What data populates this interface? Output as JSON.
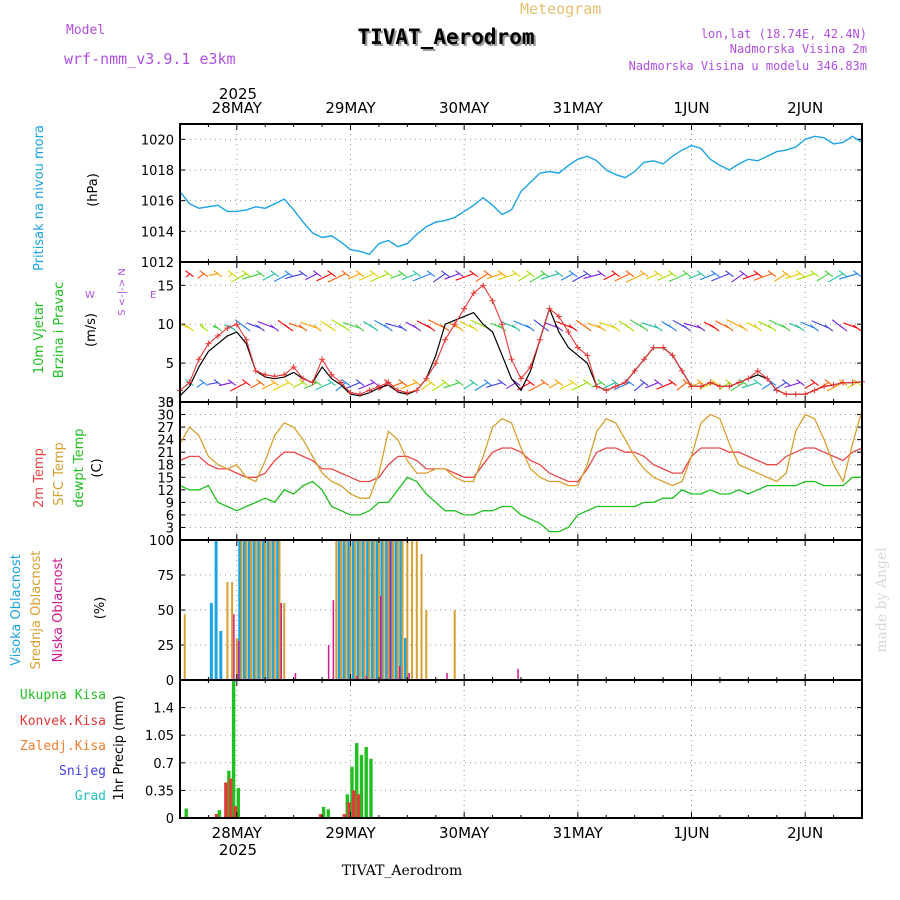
{
  "header": {
    "model_label": "Model",
    "model_name": "wrf-nmm_v3.9.1 e3km",
    "title": "TIVAT_Aerodrom",
    "subtitle": "Meteogram",
    "lonlat": "lon,lat (18.74E, 42.4N)",
    "elevation": "Nadmorska Visina 2m",
    "model_elevation": "Nadmorska Visina u modelu 346.83m",
    "bottom_label": "TIVAT_Aerodrom",
    "watermark": "made by Angel"
  },
  "time_axis": {
    "year": "2025",
    "labels": [
      "28MAY",
      "29MAY",
      "30MAY",
      "31MAY",
      "1JUN",
      "2JUN"
    ],
    "start_hour": -12,
    "end_hour": 132
  },
  "colors": {
    "pressure": "#1ba4e4",
    "speed": "#e83838",
    "speed_model": "#000000",
    "t2m": "#e84848",
    "tsfc": "#d8a030",
    "dewpt": "#20c020",
    "high_cloud": "#1ba4e4",
    "mid_cloud": "#d8a030",
    "low_cloud": "#d01890",
    "total_precip": "#20c020",
    "conv_precip": "#e83838",
    "frozen": "#f08030",
    "snow": "#4040e0",
    "hail": "#20c0c0",
    "wind_dir": "#a020f0"
  },
  "chart_data": [
    {
      "type": "line",
      "name": "pressure",
      "ylabel_1": "Pritisak na nivou mora",
      "ylabel_2": "(hPa)",
      "ylim": [
        1012,
        1021
      ],
      "yticks": [
        1012,
        1014,
        1016,
        1018,
        1020
      ],
      "x": [
        -12,
        -10,
        -8,
        -6,
        -4,
        -2,
        0,
        2,
        4,
        6,
        8,
        10,
        12,
        14,
        16,
        18,
        20,
        22,
        24,
        26,
        28,
        30,
        32,
        34,
        36,
        38,
        40,
        42,
        44,
        46,
        48,
        50,
        52,
        54,
        56,
        58,
        60,
        62,
        64,
        66,
        68,
        70,
        72,
        74,
        76,
        78,
        80,
        82,
        84,
        86,
        88,
        90,
        92,
        94,
        96,
        98,
        100,
        102,
        104,
        106,
        108,
        110,
        112,
        114,
        116,
        118,
        120,
        122,
        124,
        126,
        128,
        130,
        132
      ],
      "values": [
        1016.6,
        1015.8,
        1015.5,
        1015.6,
        1015.7,
        1015.3,
        1015.3,
        1015.4,
        1015.6,
        1015.5,
        1015.8,
        1016.1,
        1015.4,
        1014.6,
        1013.9,
        1013.6,
        1013.7,
        1013.3,
        1012.8,
        1012.7,
        1012.5,
        1013.2,
        1013.4,
        1013.0,
        1013.2,
        1013.8,
        1014.3,
        1014.6,
        1014.7,
        1014.9,
        1015.3,
        1015.7,
        1016.2,
        1015.7,
        1015.1,
        1015.4,
        1016.6,
        1017.2,
        1017.8,
        1017.9,
        1017.8,
        1018.3,
        1018.7,
        1018.9,
        1018.6,
        1018.0,
        1017.7,
        1017.5,
        1017.9,
        1018.5,
        1018.6,
        1018.4,
        1018.9,
        1019.3,
        1019.6,
        1019.4,
        1018.7,
        1018.3,
        1018.0,
        1018.4,
        1018.7,
        1018.6,
        1018.9,
        1019.2,
        1019.3,
        1019.5,
        1020.0,
        1020.2,
        1020.1,
        1019.7,
        1019.8,
        1020.2,
        1019.8
      ]
    },
    {
      "type": "line",
      "name": "wind",
      "ylabel_1": "10m Vjetar",
      "ylabel_2": "Brzina i Pravac",
      "ylabel_3": "(m/s)",
      "compass": "S <-|-> N",
      "compass_w": "W",
      "compass_e": "E",
      "ylim": [
        0,
        18
      ],
      "yticks": [
        0,
        5,
        10,
        15
      ],
      "x": [
        -12,
        -10,
        -8,
        -6,
        -4,
        -2,
        0,
        2,
        4,
        6,
        8,
        10,
        12,
        14,
        16,
        18,
        20,
        22,
        24,
        26,
        28,
        30,
        32,
        34,
        36,
        38,
        40,
        42,
        44,
        46,
        48,
        50,
        52,
        54,
        56,
        58,
        60,
        62,
        64,
        66,
        68,
        70,
        72,
        74,
        76,
        78,
        80,
        82,
        84,
        86,
        88,
        90,
        92,
        94,
        96,
        98,
        100,
        102,
        104,
        106,
        108,
        110,
        112,
        114,
        116,
        118,
        120,
        122,
        124,
        126,
        128,
        130,
        132
      ],
      "values": [
        1.5,
        2.5,
        5.5,
        7.5,
        8.5,
        9.5,
        10,
        8,
        4,
        3.5,
        3.3,
        3.5,
        4.5,
        3,
        2.5,
        5.5,
        3.5,
        2.5,
        1.2,
        1,
        1.5,
        2,
        2.5,
        1.5,
        1.2,
        1.5,
        3,
        5,
        8,
        10,
        12,
        14,
        15,
        13,
        10,
        5.5,
        3,
        4.5,
        8,
        12,
        11,
        9,
        7,
        6,
        2,
        1.5,
        2,
        2.5,
        4,
        5.5,
        7,
        7,
        6,
        4,
        2,
        2,
        2.5,
        2,
        2,
        2.5,
        3,
        4,
        3,
        1.5,
        1,
        1,
        1,
        1.5,
        2,
        2.2,
        2.5,
        2.5,
        2.6
      ],
      "model_values": [
        0.8,
        2,
        4.5,
        6.5,
        7.5,
        8.5,
        9,
        7.5,
        4,
        3.2,
        3,
        3.2,
        3.8,
        3,
        2.5,
        4.5,
        3,
        2.2,
        1,
        0.8,
        1.2,
        1.8,
        2.2,
        1.3,
        1,
        1.5,
        3,
        6,
        10,
        10.5,
        11,
        11.5,
        10,
        9,
        6,
        3,
        1.5,
        4,
        8,
        12,
        9,
        7,
        6,
        5,
        2,
        1.5,
        2,
        2.5,
        4,
        5.5,
        7,
        7,
        6,
        4,
        2,
        2,
        2.5,
        2,
        2,
        2.5,
        3,
        3.5,
        3,
        1.5,
        1,
        1,
        1,
        1.5,
        2,
        2.2,
        2.5,
        2.5,
        2.6
      ]
    },
    {
      "type": "line",
      "name": "temperature",
      "ylabel_1": "2m Temp",
      "ylabel_2": "SFC Temp",
      "ylabel_3": "dewpt Temp",
      "ylabel_4": "(C)",
      "ylim": [
        0,
        33
      ],
      "yticks": [
        0,
        3,
        6,
        9,
        12,
        15,
        18,
        21,
        24,
        27,
        30,
        33
      ],
      "x": [
        -12,
        -10,
        -8,
        -6,
        -4,
        -2,
        0,
        2,
        4,
        6,
        8,
        10,
        12,
        14,
        16,
        18,
        20,
        22,
        24,
        26,
        28,
        30,
        32,
        34,
        36,
        38,
        40,
        42,
        44,
        46,
        48,
        50,
        52,
        54,
        56,
        58,
        60,
        62,
        64,
        66,
        68,
        70,
        72,
        74,
        76,
        78,
        80,
        82,
        84,
        86,
        88,
        90,
        92,
        94,
        96,
        98,
        100,
        102,
        104,
        106,
        108,
        110,
        112,
        114,
        116,
        118,
        120,
        122,
        124,
        126,
        128,
        130,
        132
      ],
      "series": [
        {
          "name": "2m Temp",
          "values": [
            19,
            20,
            20,
            18,
            17,
            17,
            16,
            15,
            15,
            16,
            19,
            21,
            21,
            20,
            19,
            17,
            17,
            16,
            15,
            14,
            14,
            15,
            18,
            20,
            20,
            19,
            17,
            17,
            17,
            16,
            15,
            15,
            18,
            21,
            22,
            22,
            21,
            19,
            18,
            16,
            15,
            14,
            14,
            17,
            21,
            22,
            22,
            21,
            21,
            20,
            18,
            17,
            16,
            16,
            20,
            22,
            22,
            22,
            21,
            21,
            20,
            19,
            18,
            18,
            20,
            21,
            22,
            22,
            21,
            20,
            19,
            21,
            22
          ]
        },
        {
          "name": "SFC Temp",
          "values": [
            23,
            27,
            25,
            20,
            18,
            17,
            18,
            15,
            14,
            19,
            25,
            28,
            27,
            24,
            20,
            16,
            14,
            13,
            11,
            10,
            10,
            16,
            26,
            24,
            19,
            16,
            16,
            17,
            17,
            15,
            14,
            14,
            20,
            27,
            29,
            28,
            22,
            17,
            15,
            14,
            14,
            13,
            13,
            18,
            26,
            29,
            28,
            24,
            20,
            17,
            15,
            14,
            13,
            14,
            20,
            28,
            30,
            29,
            23,
            18,
            17,
            16,
            15,
            14,
            16,
            26,
            30,
            29,
            24,
            18,
            14,
            23,
            31
          ]
        },
        {
          "name": "dewpt Temp",
          "values": [
            13,
            12,
            12,
            13,
            9,
            8,
            7,
            8,
            9,
            10,
            9,
            12,
            11,
            13,
            14,
            12,
            8,
            7,
            6,
            6,
            7,
            9,
            9,
            12,
            15,
            14,
            11,
            9,
            7,
            7,
            6,
            6,
            7,
            7,
            8,
            8,
            6,
            5,
            4,
            2,
            2,
            3,
            6,
            7,
            8,
            8,
            8,
            8,
            8,
            9,
            9,
            10,
            10,
            12,
            11,
            11,
            12,
            11,
            11,
            12,
            11,
            12,
            13,
            13,
            13,
            13,
            14,
            14,
            13,
            13,
            13,
            15,
            15
          ]
        }
      ]
    },
    {
      "type": "bar",
      "name": "cloud_cover",
      "ylabel_1": "Visoka Oblacnost",
      "ylabel_2": "Srednja Oblacnost",
      "ylabel_3": "Niska Oblacnost",
      "ylabel_4": "(%)",
      "ylim": [
        0,
        100
      ],
      "yticks": [
        0,
        25,
        50,
        75,
        100
      ],
      "series": [
        {
          "name": "Visoka Oblacnost",
          "x": [
            -5,
            -4,
            -3,
            1,
            2,
            3,
            4,
            5,
            6,
            7,
            8,
            9,
            22,
            23,
            24,
            25,
            26,
            27,
            28,
            29,
            30,
            31,
            32,
            33,
            34,
            35,
            36
          ],
          "values": [
            55,
            100,
            35,
            100,
            100,
            100,
            100,
            100,
            100,
            100,
            100,
            100,
            100,
            100,
            100,
            100,
            100,
            100,
            100,
            100,
            100,
            100,
            100,
            100,
            100,
            100,
            30
          ]
        },
        {
          "name": "Srednja Oblacnost",
          "x": [
            -11,
            -2,
            -1,
            0,
            1,
            2,
            3,
            4,
            5,
            6,
            7,
            8,
            9,
            10,
            21,
            22,
            23,
            24,
            25,
            26,
            27,
            28,
            29,
            30,
            31,
            32,
            33,
            34,
            35,
            36,
            37,
            38,
            39,
            40,
            46
          ],
          "values": [
            47,
            70,
            70,
            30,
            100,
            100,
            100,
            100,
            100,
            100,
            100,
            100,
            100,
            55,
            100,
            100,
            100,
            100,
            100,
            100,
            100,
            100,
            100,
            100,
            100,
            100,
            100,
            100,
            100,
            100,
            100,
            100,
            90,
            50,
            50
          ]
        },
        {
          "name": "Niska Oblacnost",
          "x": [
            -1,
            0,
            9,
            12,
            19,
            20,
            25,
            27,
            30,
            32,
            34,
            36,
            44,
            59
          ],
          "values": [
            47,
            28,
            55,
            5,
            25,
            57,
            3,
            3,
            60,
            100,
            10,
            5,
            5,
            8
          ]
        }
      ]
    },
    {
      "type": "bar",
      "name": "precipitation",
      "ylabel_1": "1hr Precip (mm)",
      "legend": [
        "Ukupna Kisa",
        "Konvek.Kisa",
        "Zaledj.Kisa",
        "Snijeg",
        "Grad"
      ],
      "ylim": [
        0,
        1.75
      ],
      "yticks": [
        0,
        0.35,
        0.7,
        1.05,
        1.4
      ],
      "ytick_labels": [
        "0",
        "0.35",
        "0.7",
        "1.05",
        "1.4"
      ],
      "series": [
        {
          "name": "Ukupna Kisa",
          "x": [
            -11,
            -4,
            -2,
            -1,
            0,
            18,
            19,
            23,
            24,
            25,
            26,
            27,
            28
          ],
          "values": [
            0.12,
            0.1,
            0.6,
            1.75,
            0.38,
            0.14,
            0.11,
            0.3,
            0.65,
            0.95,
            0.8,
            0.9,
            0.75
          ]
        },
        {
          "name": "Konvek.Kisa",
          "x": [
            -4,
            -2,
            -1,
            0,
            18,
            23,
            24,
            25,
            26
          ],
          "values": [
            0.05,
            0.45,
            0.5,
            0.15,
            0.05,
            0.05,
            0.2,
            0.35,
            0.3
          ]
        }
      ]
    }
  ]
}
